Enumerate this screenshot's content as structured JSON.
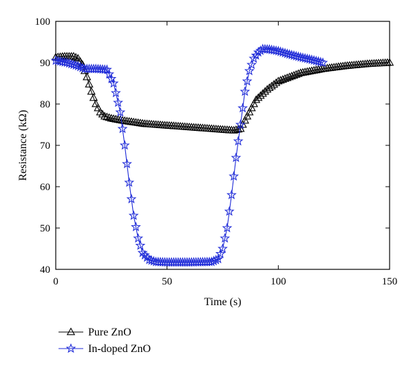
{
  "chart_data": {
    "type": "line",
    "title": "",
    "xlabel": "Time (s)",
    "ylabel": "Resistance (kΩ)",
    "xlim": [
      0,
      150
    ],
    "ylim": [
      40,
      100
    ],
    "x_ticks": [
      "0",
      "50",
      "100",
      "150"
    ],
    "y_ticks": [
      "40",
      "50",
      "60",
      "70",
      "80",
      "90",
      "100"
    ],
    "grid": false,
    "legend_position": "bottom-left, below plot",
    "series": [
      {
        "name": "Pure ZnO",
        "marker": "triangle",
        "color": "#000000",
        "points": [
          [
            0,
            91.3
          ],
          [
            4,
            91.5
          ],
          [
            8,
            91.5
          ],
          [
            10,
            91.0
          ],
          [
            12,
            89.5
          ],
          [
            14,
            86.5
          ],
          [
            16,
            83.0
          ],
          [
            18,
            80.0
          ],
          [
            20,
            78.0
          ],
          [
            22,
            77.0
          ],
          [
            25,
            76.5
          ],
          [
            30,
            76.0
          ],
          [
            40,
            75.2
          ],
          [
            50,
            74.8
          ],
          [
            60,
            74.4
          ],
          [
            70,
            74.0
          ],
          [
            80,
            73.6
          ],
          [
            83,
            74.0
          ],
          [
            86,
            77.0
          ],
          [
            90,
            81.0
          ],
          [
            95,
            83.5
          ],
          [
            100,
            85.5
          ],
          [
            110,
            87.5
          ],
          [
            120,
            88.5
          ],
          [
            130,
            89.2
          ],
          [
            140,
            89.7
          ],
          [
            150,
            90.0
          ]
        ]
      },
      {
        "name": "In-doped ZnO",
        "marker": "star",
        "color": "#1f2bd8",
        "points": [
          [
            0,
            90.5
          ],
          [
            5,
            90.0
          ],
          [
            10,
            89.2
          ],
          [
            13,
            88.5
          ],
          [
            18,
            88.5
          ],
          [
            23,
            88.3
          ],
          [
            26,
            85.0
          ],
          [
            29,
            78.0
          ],
          [
            31,
            70.0
          ],
          [
            33,
            61.0
          ],
          [
            35,
            53.0
          ],
          [
            37,
            47.5
          ],
          [
            39,
            44.0
          ],
          [
            42,
            42.3
          ],
          [
            45,
            41.8
          ],
          [
            50,
            41.7
          ],
          [
            60,
            41.7
          ],
          [
            70,
            41.8
          ],
          [
            73,
            42.5
          ],
          [
            75,
            45.0
          ],
          [
            77,
            50.0
          ],
          [
            79,
            58.0
          ],
          [
            81,
            67.0
          ],
          [
            83,
            75.0
          ],
          [
            85,
            83.0
          ],
          [
            87,
            88.0
          ],
          [
            89,
            91.0
          ],
          [
            91,
            92.5
          ],
          [
            93,
            93.3
          ],
          [
            96,
            93.2
          ],
          [
            100,
            92.8
          ],
          [
            105,
            92.0
          ],
          [
            110,
            91.3
          ],
          [
            115,
            90.7
          ],
          [
            120,
            90.0
          ]
        ]
      }
    ]
  }
}
